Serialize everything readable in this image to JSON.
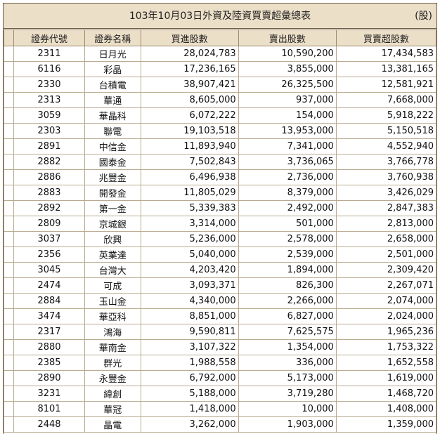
{
  "title": "103年10月03日外資及陸資買賣超彙總表",
  "unit": "(股)",
  "headers": {
    "code": "證券代號",
    "name": "證券名稱",
    "buy": "買進股數",
    "sell": "賣出股數",
    "net": "買賣超股數"
  },
  "rows": [
    {
      "code": "2311",
      "name": "日月光",
      "buy": "28,024,783",
      "sell": "10,590,200",
      "net": "17,434,583"
    },
    {
      "code": "6116",
      "name": "彩晶",
      "buy": "17,236,165",
      "sell": "3,855,000",
      "net": "13,381,165"
    },
    {
      "code": "2330",
      "name": "台積電",
      "buy": "38,907,421",
      "sell": "26,325,500",
      "net": "12,581,921"
    },
    {
      "code": "2313",
      "name": "華通",
      "buy": "8,605,000",
      "sell": "937,000",
      "net": "7,668,000"
    },
    {
      "code": "3059",
      "name": "華晶科",
      "buy": "6,072,222",
      "sell": "154,000",
      "net": "5,918,222"
    },
    {
      "code": "2303",
      "name": "聯電",
      "buy": "19,103,518",
      "sell": "13,953,000",
      "net": "5,150,518"
    },
    {
      "code": "2891",
      "name": "中信金",
      "buy": "11,893,940",
      "sell": "7,341,000",
      "net": "4,552,940"
    },
    {
      "code": "2882",
      "name": "國泰金",
      "buy": "7,502,843",
      "sell": "3,736,065",
      "net": "3,766,778"
    },
    {
      "code": "2886",
      "name": "兆豐金",
      "buy": "6,496,938",
      "sell": "2,736,000",
      "net": "3,760,938"
    },
    {
      "code": "2883",
      "name": "開發金",
      "buy": "11,805,029",
      "sell": "8,379,000",
      "net": "3,426,029"
    },
    {
      "code": "2892",
      "name": "第一金",
      "buy": "5,339,383",
      "sell": "2,492,000",
      "net": "2,847,383"
    },
    {
      "code": "2809",
      "name": "京城銀",
      "buy": "3,314,000",
      "sell": "501,000",
      "net": "2,813,000"
    },
    {
      "code": "3037",
      "name": "欣興",
      "buy": "5,236,000",
      "sell": "2,578,000",
      "net": "2,658,000"
    },
    {
      "code": "2356",
      "name": "英業達",
      "buy": "5,040,000",
      "sell": "2,539,000",
      "net": "2,501,000"
    },
    {
      "code": "3045",
      "name": "台灣大",
      "buy": "4,203,420",
      "sell": "1,894,000",
      "net": "2,309,420"
    },
    {
      "code": "2474",
      "name": "可成",
      "buy": "3,093,371",
      "sell": "826,300",
      "net": "2,267,071"
    },
    {
      "code": "2884",
      "name": "玉山金",
      "buy": "4,340,000",
      "sell": "2,266,000",
      "net": "2,074,000"
    },
    {
      "code": "3474",
      "name": "華亞科",
      "buy": "8,851,000",
      "sell": "6,827,000",
      "net": "2,024,000"
    },
    {
      "code": "2317",
      "name": "鴻海",
      "buy": "9,590,811",
      "sell": "7,625,575",
      "net": "1,965,236"
    },
    {
      "code": "2880",
      "name": "華南金",
      "buy": "3,107,322",
      "sell": "1,354,000",
      "net": "1,753,322"
    },
    {
      "code": "2385",
      "name": "群光",
      "buy": "1,988,558",
      "sell": "336,000",
      "net": "1,652,558"
    },
    {
      "code": "2890",
      "name": "永豐金",
      "buy": "6,792,000",
      "sell": "5,173,000",
      "net": "1,619,000"
    },
    {
      "code": "3231",
      "name": "緯創",
      "buy": "5,188,000",
      "sell": "3,719,280",
      "net": "1,468,720"
    },
    {
      "code": "8101",
      "name": "華冠",
      "buy": "1,418,000",
      "sell": "10,000",
      "net": "1,408,000"
    },
    {
      "code": "2448",
      "name": "晶電",
      "buy": "3,262,000",
      "sell": "1,903,000",
      "net": "1,359,000"
    }
  ]
}
